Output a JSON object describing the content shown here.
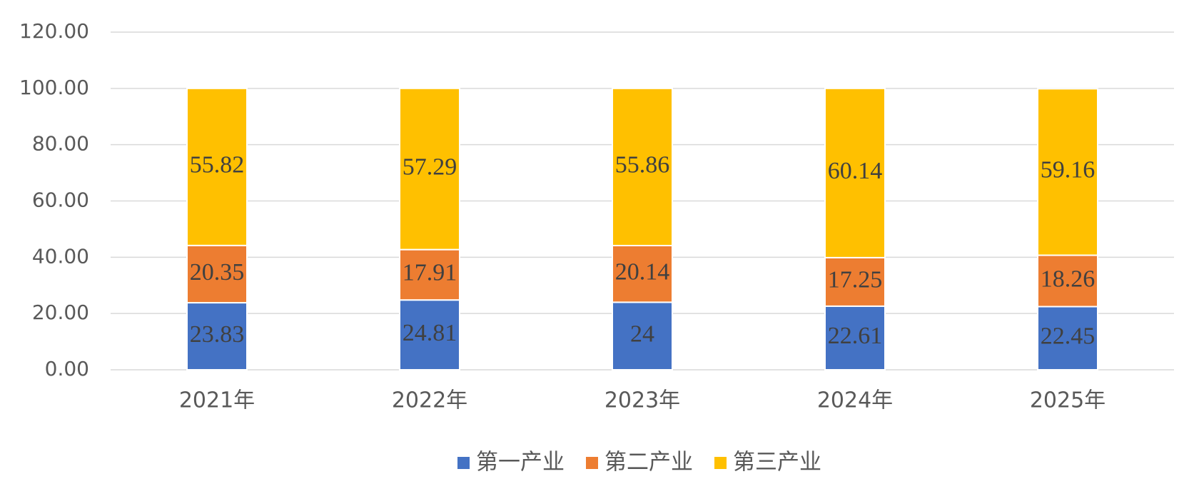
{
  "chart_data": {
    "type": "stacked_bar",
    "categories": [
      "2021年",
      "2022年",
      "2023年",
      "2024年",
      "2025年"
    ],
    "series": [
      {
        "name": "第一产业",
        "color": "#4472c4",
        "values": [
          23.83,
          24.81,
          24,
          22.61,
          22.45
        ]
      },
      {
        "name": "第二产业",
        "color": "#ed7d31",
        "values": [
          20.35,
          17.91,
          20.14,
          17.25,
          18.26
        ]
      },
      {
        "name": "第三产业",
        "color": "#ffc000",
        "values": [
          55.82,
          57.29,
          55.86,
          60.14,
          59.16
        ]
      }
    ],
    "ylim": [
      0,
      120
    ],
    "yticks": [
      {
        "value": 0,
        "label": "0.00"
      },
      {
        "value": 20,
        "label": "20.00"
      },
      {
        "value": 40,
        "label": "40.00"
      },
      {
        "value": 60,
        "label": "60.00"
      },
      {
        "value": 80,
        "label": "80.00"
      },
      {
        "value": 100,
        "label": "100.00"
      },
      {
        "value": 120,
        "label": "120.00"
      }
    ],
    "grid": true,
    "legend": "bottom"
  }
}
